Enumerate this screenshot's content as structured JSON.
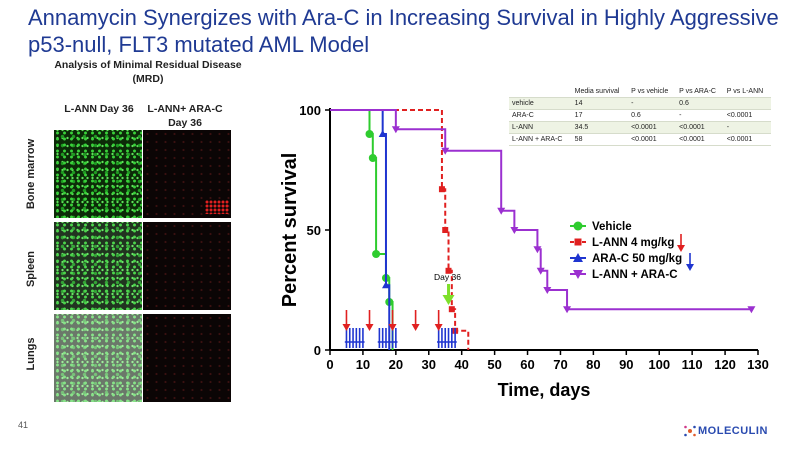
{
  "slide_title": "Annamycin Synergizes with Ara-C in Increasing Survival in Highly Aggressive p53-null, FLT3 mutated AML Model",
  "mrd": {
    "title": "Analysis of Minimal Residual Disease (MRD)",
    "columns": [
      "L-ANN Day 36",
      "L-ANN+ ARA-C Day 36"
    ],
    "rows": [
      "Bone marrow",
      "Spleen",
      "Lungs"
    ]
  },
  "stats_table": {
    "headers": [
      "",
      "Media survival",
      "P vs vehicle",
      "P vs ARA-C",
      "P vs L-ANN"
    ],
    "rows": [
      [
        "vehicle",
        "14",
        "-",
        "0.6",
        ""
      ],
      [
        "ARA-C",
        "17",
        "0.6",
        "-",
        "<0.0001"
      ],
      [
        "L-ANN",
        "34.5",
        "<0.0001",
        "<0.0001",
        "-"
      ],
      [
        "L-ANN + ARA-C",
        "58",
        "<0.0001",
        "<0.0001",
        "<0.0001"
      ]
    ]
  },
  "chart_data": {
    "type": "line",
    "ylabel": "Percent survival",
    "xlabel": "Time, days",
    "xlim": [
      0,
      130
    ],
    "ylim": [
      0,
      100
    ],
    "x_ticks": [
      "0",
      "10",
      "20",
      "30",
      "40",
      "50",
      "60",
      "70",
      "80",
      "90",
      "100",
      "110",
      "120",
      "130"
    ],
    "y_ticks": [
      "0",
      "50",
      "100"
    ],
    "annotation": "Day 36",
    "series": [
      {
        "name": "Vehicle",
        "color": "#2ecc2e",
        "style": "solid",
        "marker": "circle",
        "points": [
          [
            0,
            100
          ],
          [
            10,
            100
          ],
          [
            12,
            90
          ],
          [
            13,
            80
          ],
          [
            14,
            40
          ],
          [
            17,
            30
          ],
          [
            18,
            20
          ],
          [
            19,
            0
          ]
        ]
      },
      {
        "name": "L-ANN 4 mg/kg",
        "color": "#e02020",
        "style": "dashed",
        "marker": "square",
        "points": [
          [
            0,
            100
          ],
          [
            25,
            100
          ],
          [
            34,
            100
          ],
          [
            34,
            67
          ],
          [
            35,
            50
          ],
          [
            36,
            33
          ],
          [
            37,
            17
          ],
          [
            38,
            8
          ],
          [
            42,
            8
          ],
          [
            42,
            0
          ]
        ]
      },
      {
        "name": "ARA-C 50 mg/kg",
        "color": "#1f35d0",
        "style": "solid",
        "marker": "triangle",
        "points": [
          [
            0,
            100
          ],
          [
            15,
            100
          ],
          [
            16,
            90
          ],
          [
            17,
            27
          ],
          [
            18,
            0
          ]
        ]
      },
      {
        "name": "L-ANN + ARA-C",
        "color": "#9b30d0",
        "style": "solid",
        "marker": "triangle-down",
        "points": [
          [
            0,
            100
          ],
          [
            18,
            100
          ],
          [
            20,
            92
          ],
          [
            34,
            92
          ],
          [
            35,
            83
          ],
          [
            52,
            83
          ],
          [
            52,
            58
          ],
          [
            56,
            58
          ],
          [
            56,
            50
          ],
          [
            62,
            50
          ],
          [
            63,
            42
          ],
          [
            64,
            33
          ],
          [
            66,
            25
          ],
          [
            72,
            25
          ],
          [
            72,
            17
          ],
          [
            128,
            17
          ]
        ]
      }
    ],
    "red_arrow_days": [
      5,
      12,
      19,
      26,
      33
    ],
    "blue_tick_days": [
      5,
      6,
      7,
      8,
      9,
      10,
      15,
      16,
      17,
      18,
      19,
      20,
      33,
      34,
      35,
      36,
      37,
      38
    ]
  },
  "footer": {
    "page_number": "41",
    "logo_text": "MOLECULIN"
  }
}
